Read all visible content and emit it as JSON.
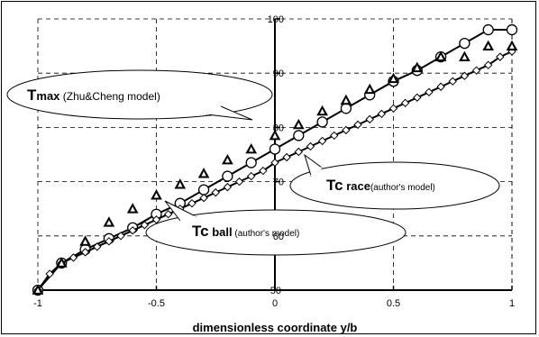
{
  "chart_data": {
    "type": "line",
    "xlabel": "dimensionless coordinate y/b",
    "xlim": [
      -1,
      1
    ],
    "ylim": [
      50,
      100
    ],
    "xticks": [
      -1,
      -0.5,
      0,
      0.5,
      1
    ],
    "yticks": [
      50,
      60,
      70,
      80,
      90,
      100
    ],
    "grid": true,
    "colors": {
      "axis": "#000000",
      "grid": "#000000",
      "series": "#000000",
      "marker_fill": "#ffffff",
      "triangle_fill": "#000000"
    },
    "callouts": [
      {
        "id": "tmax",
        "main": "T",
        "sub": "max",
        "note": " (Zhu&Cheng model)"
      },
      {
        "id": "tcrace",
        "main": "Tc",
        "sub": " race",
        "note": "(author's model)"
      },
      {
        "id": "tcball",
        "main": "Tc",
        "sub": " ball",
        "note": " (author's model)"
      }
    ],
    "series": [
      {
        "marker": "circle",
        "x": [
          -1,
          -0.9,
          -0.8,
          -0.7,
          -0.6,
          -0.5,
          -0.4,
          -0.3,
          -0.2,
          -0.1,
          0,
          0.1,
          0.2,
          0.3,
          0.4,
          0.5,
          0.6,
          0.7,
          0.8,
          0.9,
          1
        ],
        "values": [
          50,
          55,
          57.5,
          59.5,
          61.5,
          64,
          66,
          68.5,
          71,
          73.5,
          76,
          78.5,
          81,
          83.5,
          86,
          88.5,
          90.5,
          93,
          95.5,
          98,
          98
        ]
      },
      {
        "marker": "diamond",
        "x": [
          -1,
          -0.95,
          -0.9,
          -0.85,
          -0.8,
          -0.75,
          -0.7,
          -0.65,
          -0.6,
          -0.55,
          -0.5,
          -0.45,
          -0.4,
          -0.35,
          -0.3,
          -0.25,
          -0.2,
          -0.15,
          -0.1,
          -0.05,
          0,
          0.05,
          0.1,
          0.15,
          0.2,
          0.25,
          0.3,
          0.35,
          0.4,
          0.45,
          0.5,
          0.55,
          0.6,
          0.65,
          0.7,
          0.75,
          0.8,
          0.85,
          0.9,
          0.95,
          1
        ],
        "values": [
          50,
          53,
          55,
          56,
          57,
          58,
          59,
          60,
          61,
          62,
          63,
          64,
          65,
          66,
          67,
          68,
          69,
          70,
          71,
          72,
          73.5,
          74.5,
          75.5,
          76.5,
          77.5,
          78.5,
          79.5,
          80.5,
          81.5,
          82.5,
          83.5,
          84.5,
          85.5,
          86.5,
          87.5,
          88.5,
          89.5,
          90.5,
          91.5,
          93,
          94
        ]
      },
      {
        "marker": "triangle",
        "x": [
          -1,
          -0.9,
          -0.8,
          -0.7,
          -0.6,
          -0.5,
          -0.4,
          -0.3,
          -0.2,
          -0.1,
          0,
          0.1,
          0.2,
          0.3,
          0.4,
          0.5,
          0.6,
          0.7,
          0.8,
          0.9,
          1
        ],
        "values": [
          50,
          55,
          59,
          62.5,
          65,
          67.5,
          69.5,
          71.5,
          74,
          76,
          78.5,
          80.5,
          83,
          85,
          87,
          89,
          91,
          93,
          93,
          95,
          95
        ]
      }
    ]
  }
}
